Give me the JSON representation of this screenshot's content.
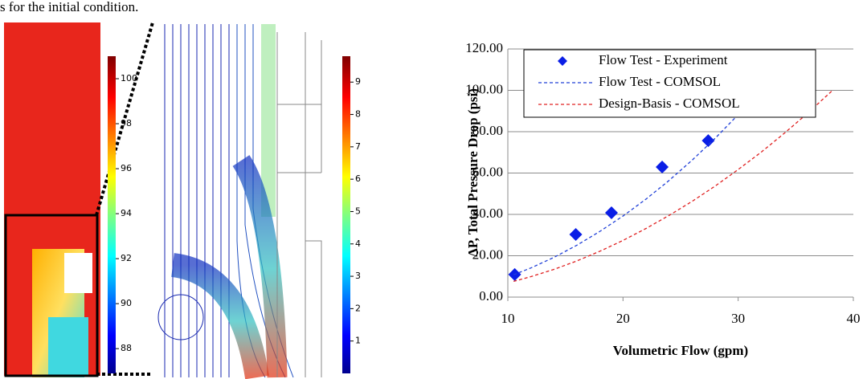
{
  "caption_fragment": "s for the initial condition.",
  "colorbars": [
    {
      "lim": [
        86.9,
        101
      ],
      "ticks": [
        100,
        98,
        96,
        94,
        92,
        90,
        88
      ]
    },
    {
      "lim": [
        0,
        9.8
      ],
      "ticks": [
        9,
        8,
        7,
        6,
        5,
        4,
        3,
        2,
        1
      ]
    }
  ],
  "chart_data": {
    "type": "line",
    "xlabel": "Volumetric Flow (gpm)",
    "ylabel": "ΔP, Total Pressure Drop (psi)",
    "xlim": [
      10,
      40
    ],
    "xticks": [
      10,
      20,
      30,
      40
    ],
    "ylim": [
      0,
      120
    ],
    "yticks": [
      {
        "value": 0,
        "label": "0.00"
      },
      {
        "value": 20,
        "label": "20.00"
      },
      {
        "value": 40,
        "label": "40.00"
      },
      {
        "value": 60,
        "label": "60.00"
      },
      {
        "value": 80,
        "label": "80.00"
      },
      {
        "value": 100,
        "label": "100.00"
      },
      {
        "value": 120,
        "label": "120.00"
      }
    ],
    "grid": true,
    "series": [
      {
        "name": "Flow Test - Experiment",
        "color": "#0a1ee6",
        "marker": "diamond",
        "x": [
          10.6,
          15.9,
          19.0,
          23.4,
          27.4
        ],
        "values": [
          10.9,
          30.3,
          40.8,
          62.9,
          75.7
        ]
      },
      {
        "name": "Flow Test - COMSOL",
        "color": "#2040d8",
        "dashed": true,
        "x": [
          10.5,
          12,
          14,
          16,
          18,
          20,
          22,
          24,
          26,
          28,
          30,
          31.9
        ],
        "values": [
          10.8,
          14.1,
          19.2,
          25.1,
          31.8,
          39.2,
          47.4,
          56.4,
          66.2,
          76.8,
          88.2,
          100
        ]
      },
      {
        "name": "Design-Basis - COMSOL",
        "color": "#e02020",
        "dashed": true,
        "x": [
          10.5,
          12,
          14,
          16,
          18,
          20,
          22,
          24,
          26,
          28,
          30,
          32,
          34,
          36,
          38.2
        ],
        "values": [
          7.6,
          9.9,
          13.4,
          17.5,
          22.2,
          27.4,
          33.2,
          39.5,
          46.3,
          53.7,
          61.7,
          70.1,
          79.2,
          88.8,
          100
        ]
      }
    ]
  }
}
